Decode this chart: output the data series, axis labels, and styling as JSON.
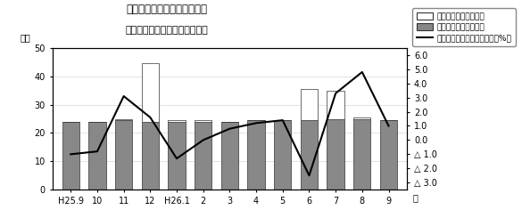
{
  "title_line1": "第１図　現金給与総額の推移",
  "title_line2": "（規模５人以上　調査産業計）",
  "xlabel_right": "月",
  "ylabel_left": "万円",
  "ylabel_right": "%",
  "categories": [
    "H25.9",
    "10",
    "11",
    "12",
    "H26.1",
    "2",
    "3",
    "4",
    "5",
    "6",
    "7",
    "8",
    "9"
  ],
  "tokubetsu": [
    0,
    0,
    0.5,
    20.5,
    0.5,
    0.5,
    0,
    0,
    0,
    11.0,
    10.0,
    0.5,
    0
  ],
  "kimatte": [
    24,
    24,
    24.5,
    24,
    24,
    24,
    24,
    24.5,
    24.5,
    24.5,
    25,
    25,
    24.5
  ],
  "yoy_rate": [
    -1.0,
    -0.8,
    3.1,
    1.6,
    -1.3,
    0.0,
    0.8,
    1.2,
    1.4,
    -2.5,
    3.3,
    4.8,
    1.0
  ],
  "ylim_left": [
    0,
    50
  ],
  "ylim_right": [
    -3.5,
    6.5
  ],
  "yticks_left": [
    0,
    10,
    20,
    30,
    40,
    50
  ],
  "yticks_right_vals": [
    6.0,
    5.0,
    4.0,
    3.0,
    2.0,
    1.0,
    0.0,
    -1.0,
    -2.0,
    -3.0
  ],
  "yticks_right_labels": [
    "6.0",
    "5.0",
    "4.0",
    "3.0",
    "2.0",
    "1.0",
    "0.0",
    "△ 1.0",
    "△ 2.0",
    "△ 3.0"
  ],
  "bar_gray": "#888888",
  "bar_white": "#ffffff",
  "bar_edge": "#333333",
  "line_color": "#000000",
  "background": "#ffffff",
  "legend_tokubetsu": "特別に支払われた給与",
  "legend_kimatte": "きまって支給する給与",
  "legend_yoy": "現金給与総額対前年同月比（%）"
}
